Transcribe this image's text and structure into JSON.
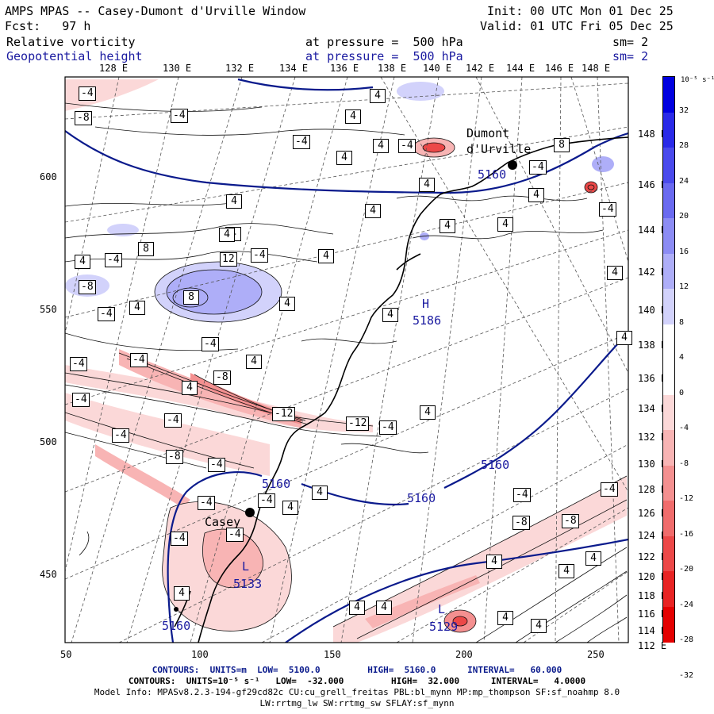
{
  "header": {
    "title": "AMPS MPAS -- Casey-Dumont d'Urville Window",
    "init": "Init: 00 UTC Mon 01 Dec 25",
    "fcst": "Fcst:   97 h",
    "valid": "Valid: 01 UTC Fri 05 Dec 25",
    "field1": "Relative vorticity",
    "field1_level": "at pressure =  500 hPa",
    "field1_sm": "sm= 2",
    "field2": "Geopotential height",
    "field2_level": "at pressure =  500 hPa",
    "field2_sm": "sm= 2"
  },
  "axes": {
    "top_lon_labels": [
      "128 E",
      "130 E",
      "132 E",
      "134 E",
      "136 E",
      "138 E",
      "140 E",
      "142 E",
      "144 E",
      "146 E",
      "148 E"
    ],
    "right_lon_labels": [
      "148 E",
      "146 E",
      "144 E",
      "142 E",
      "140 E",
      "138 E",
      "136 E",
      "134 E",
      "132 E",
      "130 E",
      "128 E",
      "126 E",
      "124 E",
      "122 E",
      "120 E",
      "118 E",
      "116 E",
      "114 E",
      "112 E"
    ],
    "left_y_labels": [
      "600",
      "550",
      "500",
      "450"
    ],
    "bottom_x_labels": [
      "50",
      "100",
      "150",
      "200",
      "250"
    ]
  },
  "places": {
    "dumont": "Dumont",
    "durville": "d'Urville",
    "casey": "Casey"
  },
  "height_labels": {
    "h_mark": "H",
    "h_value": "5186",
    "l1_mark": "L",
    "l1_value": "5133",
    "l2_mark": "L",
    "l2_value": "5129",
    "c1": "5160",
    "c2": "5160",
    "c3": "5160",
    "c4": "5160",
    "c5": "5160"
  },
  "vort_labels": [
    "-4",
    "-8",
    "-4",
    "-4",
    "4",
    "4",
    "-4",
    "4",
    "4",
    "4",
    "4",
    "4",
    "4",
    "4",
    "4",
    "-4",
    "4",
    "8",
    "-4",
    "4",
    "8",
    "12",
    "8",
    "4",
    "-4",
    "4",
    "-4",
    "4",
    "-4",
    "-8",
    "4",
    "4",
    "4",
    "4",
    "-4",
    "-12",
    "-12",
    "-4",
    "4",
    "-4",
    "-8",
    "-4",
    "-4",
    "-4",
    "-4",
    "4",
    "4",
    "-4",
    "-8",
    "4",
    "-4",
    "-4",
    "-4",
    "-4",
    "4",
    "4",
    "-4",
    "-8",
    "-8",
    "-4",
    "4",
    "4",
    "4",
    "4",
    "4",
    "4",
    "4"
  ],
  "colorbar": {
    "unit": "10⁻⁵ s⁻¹",
    "ticks": [
      "32",
      "28",
      "24",
      "20",
      "16",
      "12",
      "8",
      "4",
      "0",
      "-4",
      "-8",
      "-12",
      "-16",
      "-20",
      "-24",
      "-28",
      "-32"
    ],
    "colors": [
      "#0000e0",
      "#2a2ae8",
      "#4a4aec",
      "#6a6af0",
      "#8c8cf4",
      "#aeaef8",
      "#d2d2fb",
      "#ffffff",
      "#ffffff",
      "#fbd8d8",
      "#f8b4b4",
      "#f49090",
      "#f06c6c",
      "#ec4848",
      "#e82424",
      "#e40000"
    ]
  },
  "footer": {
    "line1": "CONTOURS:  UNITS=m  LOW=  5100.0         HIGH=  5160.0      INTERVAL=   60.000",
    "line2": "CONTOURS:  UNITS=10⁻⁵ s⁻¹   LOW=  -32.000         HIGH=  32.000      INTERVAL=   4.0000",
    "line3": "Model Info: MPASv8.2.3-194-gf29cd82c CU:cu_grell_freitas PBL:bl_mynn MP:mp_thompson SF:sf_noahmp 8.0",
    "line4": "LW:rrtmg_lw SW:rrtmg_sw SFLAY:sf_mynn"
  }
}
